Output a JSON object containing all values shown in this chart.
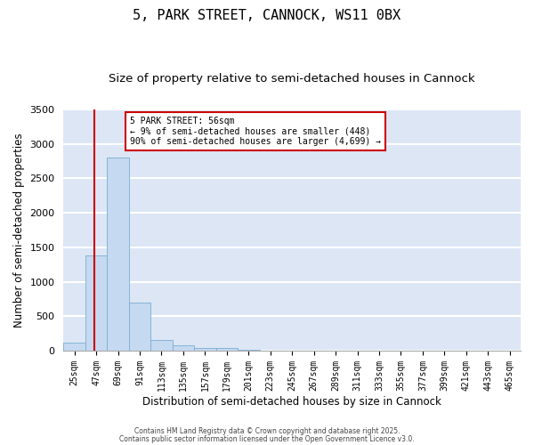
{
  "title1": "5, PARK STREET, CANNOCK, WS11 0BX",
  "title2": "Size of property relative to semi-detached houses in Cannock",
  "xlabel": "Distribution of semi-detached houses by size in Cannock",
  "ylabel": "Number of semi-detached properties",
  "bins": [
    25,
    47,
    69,
    91,
    113,
    135,
    157,
    179,
    201,
    223,
    245,
    267,
    289,
    311,
    333,
    355,
    377,
    399,
    421,
    443,
    465
  ],
  "counts": [
    120,
    1380,
    2800,
    700,
    155,
    75,
    40,
    35,
    10,
    0,
    0,
    0,
    0,
    0,
    0,
    0,
    0,
    0,
    0,
    0
  ],
  "bar_color": "#c5d9f0",
  "bar_edge_color": "#7badd4",
  "property_sqm": 56,
  "vline_color": "#cc0000",
  "annotation_text": "5 PARK STREET: 56sqm\n← 9% of semi-detached houses are smaller (448)\n90% of semi-detached houses are larger (4,699) →",
  "annotation_box_color": "#cc0000",
  "ylim": [
    0,
    3500
  ],
  "yticks": [
    0,
    500,
    1000,
    1500,
    2000,
    2500,
    3000,
    3500
  ],
  "bg_color": "#dce6f5",
  "grid_color": "white",
  "title1_fontsize": 11,
  "title2_fontsize": 9.5,
  "tick_fontsize": 7,
  "label_fontsize": 8.5,
  "ann_fontsize": 7,
  "footer_text1": "Contains HM Land Registry data © Crown copyright and database right 2025.",
  "footer_text2": "Contains public sector information licensed under the Open Government Licence v3.0."
}
